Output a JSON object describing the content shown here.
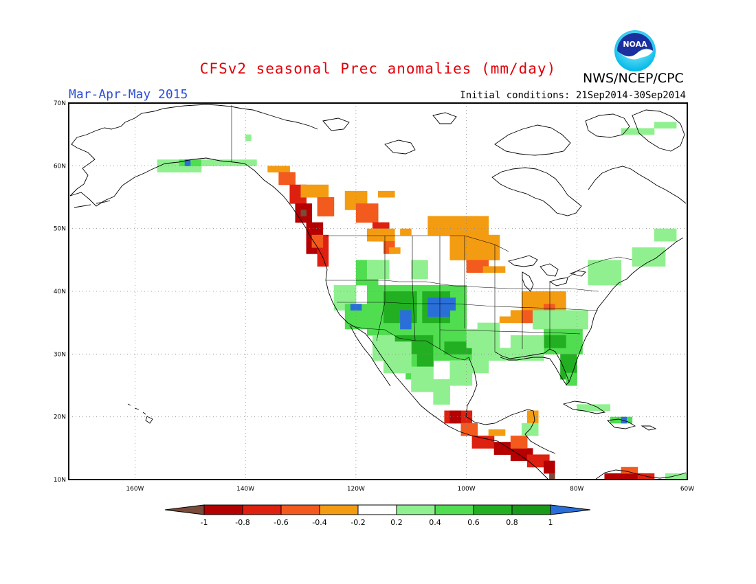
{
  "header": {
    "title": "CFSv2 seasonal Prec anomalies (mm/day)",
    "season": "Mar-Apr-May 2015",
    "initial_conditions": "Initial conditions: 21Sep2014-30Sep2014",
    "organization": "NWS/NCEP/CPC",
    "logo_text": "NOAA"
  },
  "map": {
    "projection": "lat-lon",
    "lon_range": [
      -172,
      -60
    ],
    "lat_range": [
      10,
      70
    ],
    "gridlines": "dotted",
    "lat_labels": [
      "70N",
      "60N",
      "50N",
      "40N",
      "30N",
      "20N",
      "10N"
    ],
    "lon_labels": [
      "160W",
      "140W",
      "120W",
      "100W",
      "80W",
      "60W"
    ]
  },
  "legend": {
    "tick_labels": [
      "-1",
      "-0.8",
      "-0.6",
      "-0.4",
      "-0.2",
      "0.2",
      "0.4",
      "0.6",
      "0.8",
      "1"
    ],
    "colors": [
      "#7a4a3a",
      "#b40000",
      "#dd2010",
      "#f35a1e",
      "#f39c12",
      "#ffffff",
      "#90f090",
      "#50dd50",
      "#22b022",
      "#1a9a1a",
      "#2a6fd8"
    ]
  },
  "anomaly_regions": [
    {
      "region": "Alaska south coast",
      "category": "0.2 to 0.6"
    },
    {
      "region": "British Columbia coast",
      "category": "-1 to -0.6"
    },
    {
      "region": "Pacific Northwest interior",
      "category": "-0.8 to -0.2"
    },
    {
      "region": "Northern Plains / Upper Midwest",
      "category": "-0.4 to -0.2"
    },
    {
      "region": "Ohio / Tennessee Valley",
      "category": "-0.6 to -0.2"
    },
    {
      "region": "Southwest US / Southern Rockies",
      "category": "0.4 to 1"
    },
    {
      "region": "Southeast US / Florida",
      "category": "0.4 to 0.8"
    },
    {
      "region": "Southern Mexico / Central America",
      "category": "-1 to -0.6"
    },
    {
      "region": "Northeast US / Maritimes",
      "category": "0.2 to 0.4"
    }
  ]
}
